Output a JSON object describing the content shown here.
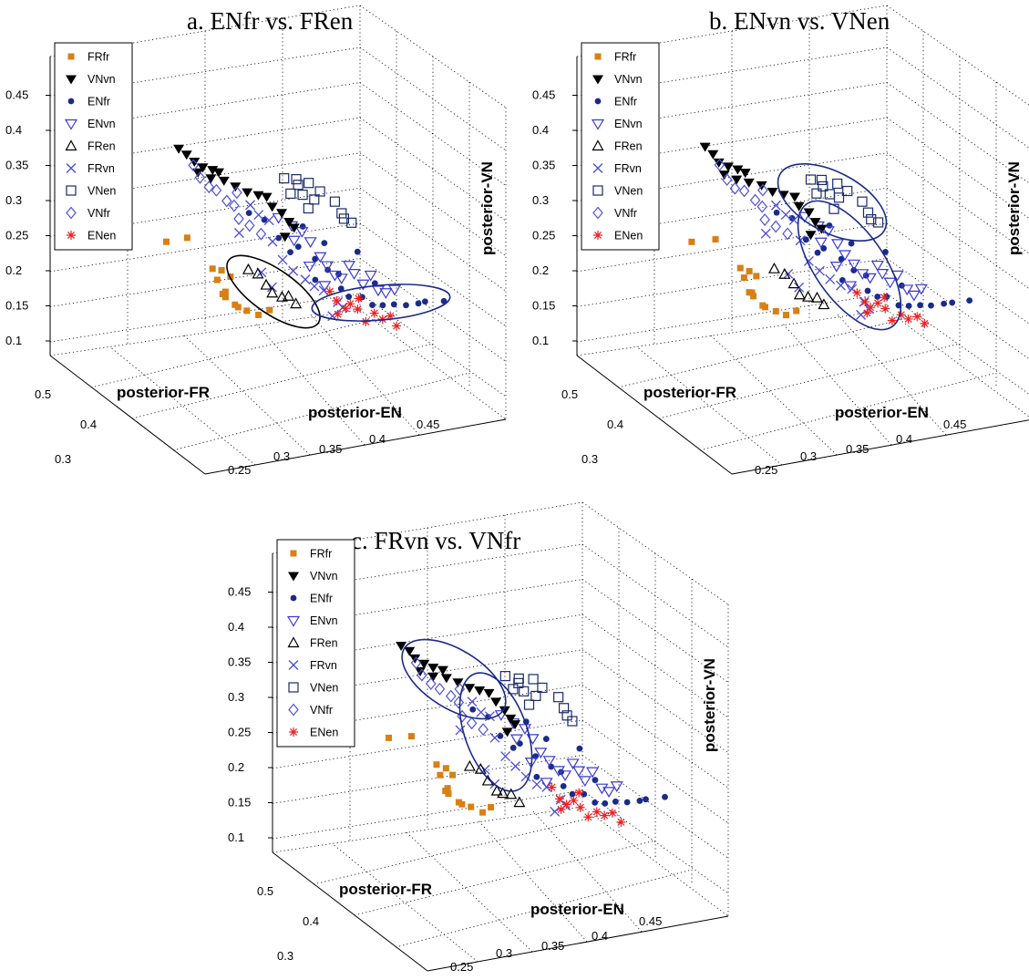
{
  "panels": [
    {
      "id": "a",
      "title": "a.   ENfr vs. FRen"
    },
    {
      "id": "b",
      "title": "b.   ENvn vs. VNen"
    },
    {
      "id": "c",
      "title": "c.   FRvn vs. VNfr"
    }
  ],
  "axes": {
    "x_label": "posterior-EN",
    "y_label": "posterior-FR",
    "z_label": "posterior-VN",
    "x_ticks": [
      "0.25",
      "0.3",
      "0.35",
      "0.4",
      "0.45"
    ],
    "y_ticks": [
      "0.3",
      "0.4",
      "0.5"
    ],
    "z_ticks": [
      "0.1",
      "0.15",
      "0.2",
      "0.25",
      "0.3",
      "0.35",
      "0.4",
      "0.45"
    ]
  },
  "legend": [
    {
      "name": "FRfr",
      "marker": "square-filled",
      "color": "#d97f14"
    },
    {
      "name": "VNvn",
      "marker": "triangle-down-filled",
      "color": "#000000"
    },
    {
      "name": "ENfr",
      "marker": "dot",
      "color": "#1a2b8a"
    },
    {
      "name": "ENvn",
      "marker": "triangle-down-open",
      "color": "#3a3ad6"
    },
    {
      "name": "FRen",
      "marker": "triangle-up-open",
      "color": "#000000"
    },
    {
      "name": "FRvn",
      "marker": "x",
      "color": "#4b4bd9"
    },
    {
      "name": "VNen",
      "marker": "square-open",
      "color": "#1a2b6a"
    },
    {
      "name": "VNfr",
      "marker": "diamond-open",
      "color": "#5050d6"
    },
    {
      "name": "ENen",
      "marker": "star",
      "color": "#f02020"
    }
  ],
  "chart_data": [
    {
      "type": "scatter",
      "panel": "a",
      "title": "ENfr vs. FRen",
      "xlabel": "posterior-EN",
      "ylabel": "posterior-FR",
      "zlabel": "posterior-VN",
      "zlim": [
        0.1,
        0.45
      ],
      "highlight": [
        "FRen",
        "ENfr"
      ],
      "grid": true,
      "legend_position": "top-left"
    },
    {
      "type": "scatter",
      "panel": "b",
      "title": "ENvn vs. VNen",
      "xlabel": "posterior-EN",
      "ylabel": "posterior-FR",
      "zlabel": "posterior-VN",
      "zlim": [
        0.1,
        0.45
      ],
      "highlight": [
        "VNen",
        "ENvn"
      ],
      "grid": true,
      "legend_position": "top-left"
    },
    {
      "type": "scatter",
      "panel": "c",
      "title": "FRvn vs. VNfr",
      "xlabel": "posterior-EN",
      "ylabel": "posterior-FR",
      "zlabel": "posterior-VN",
      "zlim": [
        0.1,
        0.45
      ],
      "highlight": [
        "VNfr",
        "FRvn"
      ],
      "grid": true,
      "legend_position": "top-left"
    }
  ]
}
